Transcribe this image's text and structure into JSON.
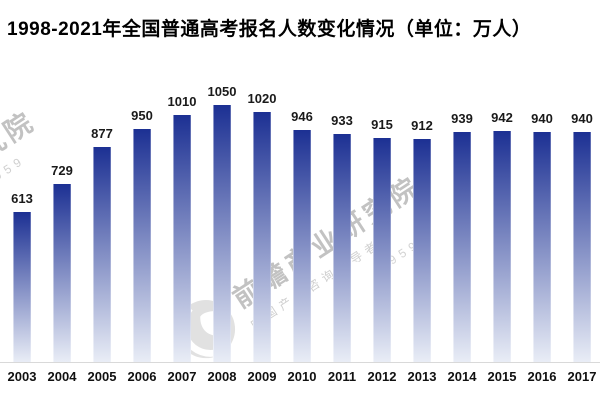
{
  "page": {
    "background": "#ffffff"
  },
  "chart_data": {
    "type": "bar",
    "title": "1998-2021年全国普通高考报名人数变化情况（单位：万人）",
    "unit": "万人",
    "categories": [
      "2003",
      "2004",
      "2005",
      "2006",
      "2007",
      "2008",
      "2009",
      "2010",
      "2011",
      "2012",
      "2013",
      "2014",
      "2015",
      "2016",
      "2017"
    ],
    "values": [
      613,
      729,
      877,
      950,
      1010,
      1050,
      1020,
      946,
      933,
      915,
      912,
      939,
      942,
      940,
      940
    ],
    "xlabel": "",
    "ylabel": "",
    "ylim": [
      0,
      1050
    ],
    "grid": false,
    "legend": false,
    "value_labels_shown": true,
    "bar_gradient_top": "#1c3093",
    "bar_gradient_bottom": "#e9edf6",
    "axis_line_color": "#d9d9d9",
    "label_color": "#1a1a1a",
    "title_color": "#000000"
  },
  "watermark": {
    "logo": "qianzhan-circle-logo",
    "big_text": "前瞻产业研究院",
    "small_text": "中国产业咨询领导者",
    "partial_digits": "959",
    "color": "#c8c8c8"
  }
}
